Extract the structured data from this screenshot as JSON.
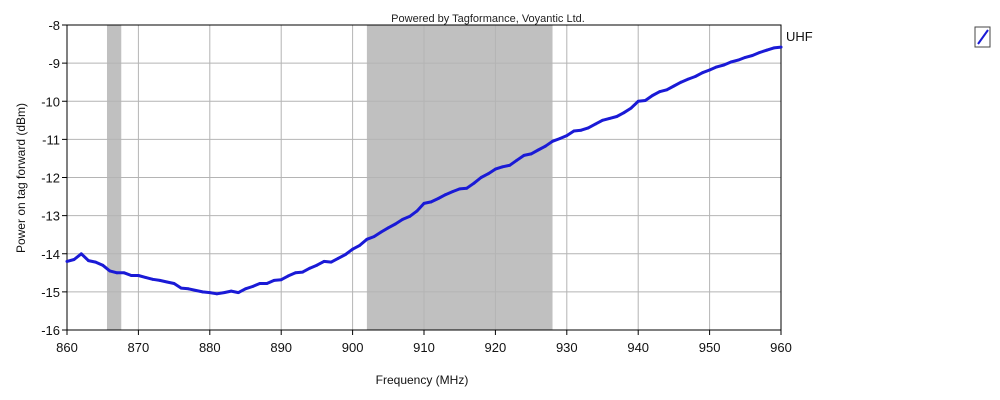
{
  "watermark": "Powered by Tagformance, Voyantic Ltd.",
  "toggle_icon": "line-series-icon",
  "colors": {
    "series": "#1a1ad6",
    "band": "#c0c0c0",
    "grid": "#b4b4b4",
    "axis": "#000000"
  },
  "chart_data": {
    "type": "line",
    "title": "",
    "xlabel": "Frequency (MHz)",
    "ylabel": "Power on tag forward (dBm)",
    "xlim": [
      860,
      960
    ],
    "ylim": [
      -16,
      -8
    ],
    "xticks": [
      860,
      870,
      880,
      890,
      900,
      910,
      920,
      930,
      940,
      950,
      960
    ],
    "yticks": [
      -16,
      -15,
      -14,
      -13,
      -12,
      -11,
      -10,
      -9,
      -8
    ],
    "grid": true,
    "legend_position": "top-right",
    "bands": [
      {
        "from": 865.6,
        "to": 867.6
      },
      {
        "from": 902,
        "to": 928
      }
    ],
    "series": [
      {
        "name": "UHF",
        "x": [
          860,
          861,
          862,
          863,
          864,
          865,
          866,
          867,
          868,
          869,
          870,
          871,
          872,
          873,
          874,
          875,
          876,
          877,
          878,
          879,
          880,
          881,
          882,
          883,
          884,
          885,
          886,
          887,
          888,
          889,
          890,
          891,
          892,
          893,
          894,
          895,
          896,
          897,
          898,
          899,
          900,
          901,
          902,
          903,
          904,
          905,
          906,
          907,
          908,
          909,
          910,
          911,
          912,
          913,
          914,
          915,
          916,
          917,
          918,
          919,
          920,
          921,
          922,
          923,
          924,
          925,
          926,
          927,
          928,
          929,
          930,
          931,
          932,
          933,
          934,
          935,
          936,
          937,
          938,
          939,
          940,
          941,
          942,
          943,
          944,
          945,
          946,
          947,
          948,
          949,
          950,
          951,
          952,
          953,
          954,
          955,
          956,
          957,
          958,
          959,
          960
        ],
        "y": [
          -14.2,
          -14.15,
          -14.0,
          -14.18,
          -14.22,
          -14.3,
          -14.45,
          -14.5,
          -14.5,
          -14.57,
          -14.57,
          -14.62,
          -14.67,
          -14.7,
          -14.74,
          -14.78,
          -14.9,
          -14.92,
          -14.96,
          -15.0,
          -15.02,
          -15.05,
          -15.02,
          -14.98,
          -15.02,
          -14.92,
          -14.86,
          -14.78,
          -14.78,
          -14.7,
          -14.68,
          -14.58,
          -14.5,
          -14.48,
          -14.38,
          -14.3,
          -14.2,
          -14.22,
          -14.12,
          -14.02,
          -13.88,
          -13.78,
          -13.62,
          -13.55,
          -13.43,
          -13.32,
          -13.22,
          -13.1,
          -13.02,
          -12.88,
          -12.68,
          -12.64,
          -12.55,
          -12.45,
          -12.37,
          -12.3,
          -12.28,
          -12.15,
          -12.0,
          -11.9,
          -11.78,
          -11.72,
          -11.68,
          -11.55,
          -11.42,
          -11.38,
          -11.28,
          -11.18,
          -11.05,
          -10.98,
          -10.9,
          -10.78,
          -10.76,
          -10.7,
          -10.6,
          -10.5,
          -10.45,
          -10.4,
          -10.3,
          -10.18,
          -10.0,
          -9.98,
          -9.85,
          -9.75,
          -9.7,
          -9.6,
          -9.5,
          -9.42,
          -9.35,
          -9.25,
          -9.18,
          -9.1,
          -9.05,
          -8.97,
          -8.92,
          -8.85,
          -8.8,
          -8.72,
          -8.66,
          -8.6,
          -8.58
        ]
      }
    ]
  }
}
